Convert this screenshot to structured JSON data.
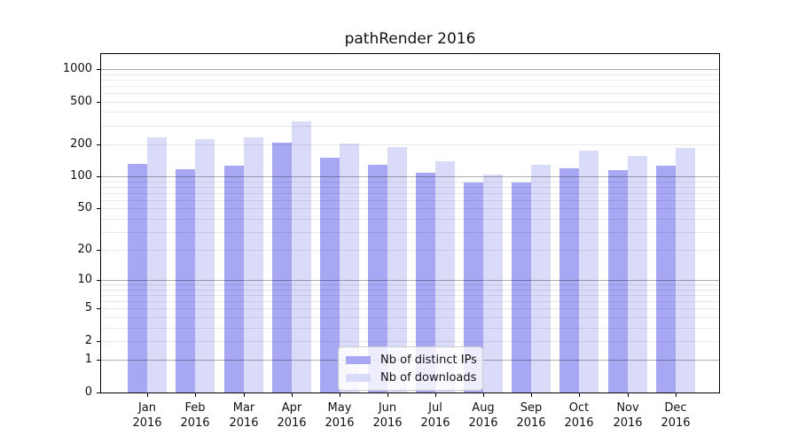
{
  "chart_data": {
    "type": "bar",
    "title": "pathRender 2016",
    "categories": [
      "Jan",
      "Feb",
      "Mar",
      "Apr",
      "May",
      "Jun",
      "Jul",
      "Aug",
      "Sep",
      "Oct",
      "Nov",
      "Dec"
    ],
    "year_label": "2016",
    "series": [
      {
        "name": "Nb of distinct IPs",
        "color": "#a7a7f4",
        "values": [
          131,
          117,
          126,
          208,
          149,
          130,
          108,
          88,
          88,
          119,
          115,
          126
        ]
      },
      {
        "name": "Nb of downloads",
        "color": "#dadaf9",
        "values": [
          234,
          222,
          232,
          330,
          204,
          189,
          140,
          104,
          130,
          175,
          155,
          184
        ]
      }
    ],
    "y_ticks": [
      0,
      1,
      2,
      5,
      10,
      20,
      50,
      100,
      200,
      500,
      1000
    ],
    "y_scale": "log10(value+1)",
    "ylim": [
      0,
      1450
    ],
    "grid": true,
    "legend_position": "lower center"
  }
}
